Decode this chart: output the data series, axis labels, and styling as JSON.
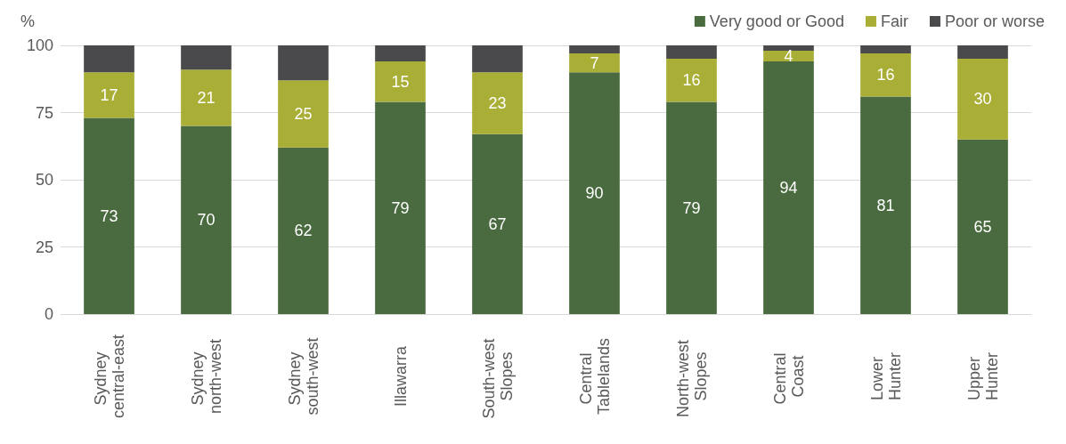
{
  "chart_data": {
    "type": "bar",
    "stacked": true,
    "ylabel": "%",
    "categories": [
      "Sydney central-east",
      "Sydney north-west",
      "Sydney south-west",
      "Illawarra",
      "South-west Slopes",
      "Central Tablelands",
      "North-west Slopes",
      "Central Coast",
      "Lower Hunter",
      "Upper Hunter"
    ],
    "series": [
      {
        "name": "Very good or Good",
        "color": "#4a6b3f",
        "values": [
          73,
          70,
          62,
          79,
          67,
          90,
          79,
          94,
          81,
          65
        ],
        "value_labels": [
          "73",
          "70",
          "62",
          "79",
          "67",
          "90",
          "79",
          "94",
          "81",
          "65"
        ]
      },
      {
        "name": "Fair",
        "color": "#a9ae36",
        "values": [
          17,
          21,
          25,
          15,
          23,
          7,
          16,
          4,
          16,
          30
        ],
        "value_labels": [
          "17",
          "21",
          "25",
          "15",
          "23",
          "7",
          "16",
          "4",
          "16",
          "30"
        ]
      },
      {
        "name": "Poor or worse",
        "color": "#4a4a4c",
        "values": [
          10,
          9,
          13,
          6,
          10,
          3,
          5,
          2,
          3,
          5
        ]
      }
    ],
    "ylim": [
      0,
      100
    ],
    "yticks": [
      0,
      25,
      50,
      75,
      100
    ],
    "grid": "y",
    "legend": "top right"
  }
}
